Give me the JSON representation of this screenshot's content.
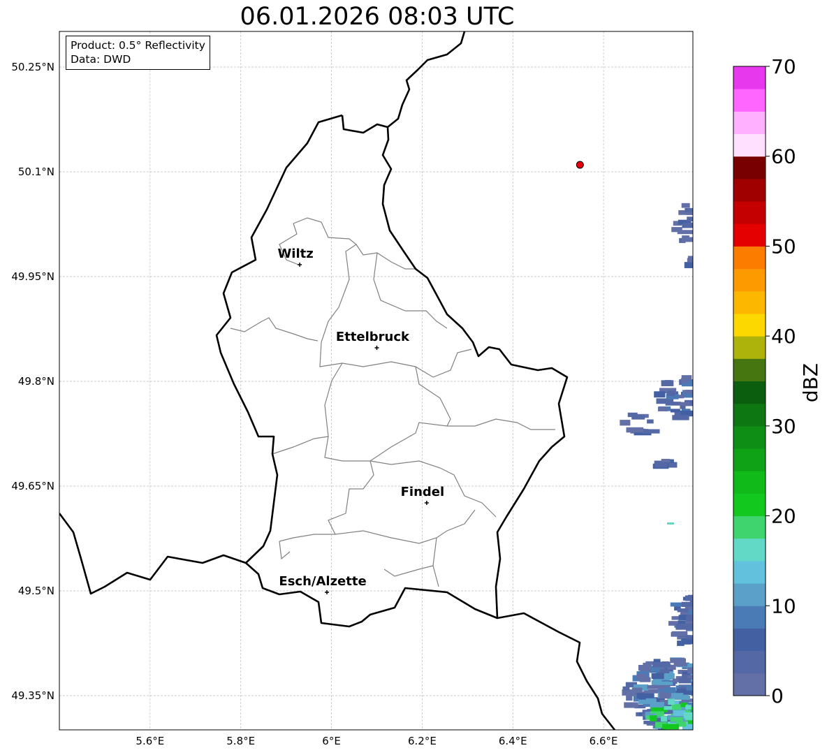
{
  "title": "06.01.2026 08:03 UTC",
  "info": {
    "product": "Product: 0.5° Reflectivity",
    "source": "Data: DWD"
  },
  "map": {
    "lon_range": [
      5.4,
      6.797
    ],
    "lat_range": [
      49.301,
      50.301
    ],
    "lon_ticks": [
      {
        "v": 5.6,
        "label": "5.6°E"
      },
      {
        "v": 5.8,
        "label": "5.8°E"
      },
      {
        "v": 6.0,
        "label": "6°E"
      },
      {
        "v": 6.2,
        "label": "6.2°E"
      },
      {
        "v": 6.4,
        "label": "6.4°E"
      },
      {
        "v": 6.6,
        "label": "6.6°E"
      }
    ],
    "lat_ticks": [
      {
        "v": 49.35,
        "label": "49.35°N"
      },
      {
        "v": 49.5,
        "label": "49.5°N"
      },
      {
        "v": 49.65,
        "label": "49.65°N"
      },
      {
        "v": 49.8,
        "label": "49.8°N"
      },
      {
        "v": 49.95,
        "label": "49.95°N"
      },
      {
        "v": 50.1,
        "label": "50.1°N"
      },
      {
        "v": 50.25,
        "label": "50.25°N"
      }
    ],
    "cities": [
      {
        "name": "Wiltz",
        "lon": 5.93,
        "lat": 49.967
      },
      {
        "name": "Ettelbruck",
        "lon": 6.1,
        "lat": 49.848
      },
      {
        "name": "Findel",
        "lon": 6.21,
        "lat": 49.626
      },
      {
        "name": "Esch/Alzette",
        "lon": 5.99,
        "lat": 49.498
      }
    ],
    "radar_site": {
      "lon": 6.548,
      "lat": 50.11,
      "color": "#e8000b"
    }
  },
  "colorbar": {
    "label": "dBZ",
    "min": 0,
    "max": 70,
    "ticks": [
      "0",
      "10",
      "20",
      "30",
      "40",
      "50",
      "60",
      "70"
    ],
    "colors": [
      "#6370a8",
      "#5468a5",
      "#4360a3",
      "#4a7bb5",
      "#5aa0c8",
      "#62c1dc",
      "#62d8c6",
      "#3fd46e",
      "#12c81e",
      "#10ba19",
      "#0fa216",
      "#0e8e14",
      "#0d7812",
      "#0b5e0e",
      "#467610",
      "#adb30a",
      "#fcd800",
      "#fcb800",
      "#fc9a00",
      "#fc7c00",
      "#e40000",
      "#c40000",
      "#a00000",
      "#780000",
      "#ffe0ff",
      "#ffb0ff",
      "#ff66ff",
      "#e838ee"
    ]
  }
}
